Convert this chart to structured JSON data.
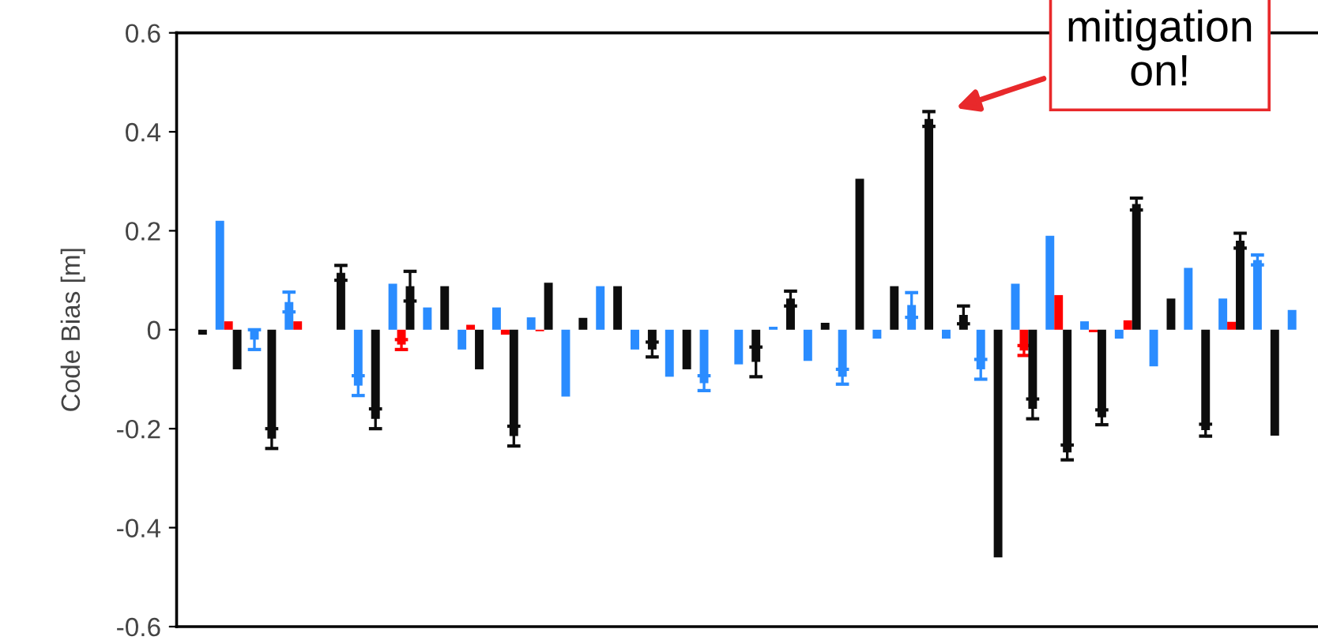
{
  "chart_data": {
    "type": "bar",
    "ylabel": "Code Bias [m]",
    "categories": [
      null,
      null,
      null,
      null,
      null,
      null,
      null,
      null,
      null,
      null,
      null,
      null,
      null,
      null,
      null,
      null,
      null,
      null,
      null,
      null,
      null,
      null,
      null,
      null,
      null,
      null,
      null,
      null,
      null,
      null,
      null,
      null,
      null
    ],
    "series": [
      {
        "color": "#2a8cff",
        "values": [
          null,
          0.22,
          -0.02,
          0.056,
          null,
          -0.113,
          0.093,
          0.045,
          -0.04,
          0.045,
          0.025,
          -0.135,
          0.088,
          -0.04,
          -0.095,
          -0.108,
          -0.07,
          0.006,
          -0.063,
          -0.095,
          -0.018,
          0.05,
          -0.018,
          -0.08,
          0.093,
          0.19,
          0.017,
          -0.018,
          -0.074,
          0.125,
          0.063,
          0.141,
          0.04
        ],
        "errors": [
          null,
          null,
          0.02,
          0.02,
          null,
          0.02,
          null,
          null,
          null,
          null,
          null,
          null,
          null,
          null,
          null,
          0.015,
          null,
          null,
          null,
          0.015,
          null,
          0.025,
          null,
          0.02,
          null,
          null,
          null,
          null,
          null,
          null,
          null,
          0.01,
          null
        ]
      },
      {
        "color": "#ff0000",
        "values": [
          null,
          0.017,
          null,
          0.017,
          null,
          null,
          -0.03,
          null,
          0.01,
          -0.01,
          -0.003,
          null,
          null,
          null,
          null,
          null,
          null,
          null,
          null,
          null,
          null,
          null,
          null,
          null,
          -0.042,
          0.07,
          -0.005,
          0.019,
          null,
          null,
          0.016,
          null,
          null
        ],
        "errors": [
          null,
          null,
          null,
          null,
          null,
          null,
          0.01,
          null,
          null,
          null,
          null,
          null,
          null,
          null,
          null,
          null,
          null,
          null,
          null,
          null,
          null,
          null,
          null,
          null,
          0.01,
          null,
          null,
          null,
          null,
          null,
          null,
          null,
          null
        ]
      },
      {
        "color": "#0d0d0d",
        "values": [
          -0.01,
          -0.08,
          -0.22,
          null,
          0.115,
          -0.18,
          0.088,
          0.088,
          -0.08,
          -0.215,
          0.095,
          0.024,
          0.088,
          -0.04,
          -0.08,
          null,
          -0.065,
          0.063,
          0.014,
          0.305,
          0.088,
          0.426,
          0.03,
          -0.46,
          -0.16,
          -0.248,
          -0.177,
          0.254,
          0.063,
          -0.203,
          0.18,
          -0.214,
          null
        ],
        "errors": [
          null,
          null,
          0.02,
          null,
          0.015,
          0.02,
          0.03,
          null,
          null,
          0.02,
          null,
          null,
          null,
          0.015,
          null,
          null,
          0.03,
          0.015,
          null,
          null,
          null,
          0.015,
          0.018,
          null,
          0.02,
          0.015,
          0.015,
          0.012,
          null,
          0.012,
          0.015,
          null,
          null
        ]
      }
    ],
    "ylim": [
      -0.6,
      0.6
    ],
    "yticks": [
      -0.6,
      -0.4,
      -0.2,
      0,
      0.2,
      0.4,
      0.6
    ],
    "tick_labels": "y",
    "annotations": [
      "mitigation\non!"
    ]
  }
}
